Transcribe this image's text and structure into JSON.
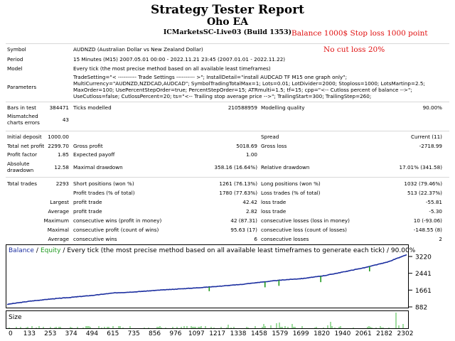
{
  "report": {
    "title": "Strategy Tester Report",
    "ea_name": "Oho EA",
    "server": "ICMarketsSC-Live03 (Build 1353)",
    "note1": "Balance 1000$ Stop loss 1000 point",
    "note2": "No cut loss 20%"
  },
  "settings": {
    "symbol_label": "Symbol",
    "symbol": "AUDNZD (Australian Dollar vs New Zealand Dollar)",
    "period_label": "Period",
    "period": "15 Minutes (M15) 2007.05.01 00:00 - 2022.11.21 23:45 (2007.01.01 - 2022.11.22)",
    "model_label": "Model",
    "model": "Every tick (the most precise method based on all available least timeframes)",
    "parameters_label": "Parameters",
    "parameters": [
      "TradeSetting=\"< ---------- Trade Settings ---------- >\"; InstallDetail=\"install AUDCAD TF M15 one graph only\";",
      "MultiCurrency=\"AUDNZD,NZDCAD,AUDCAD\"; SymbolTradingTotalMax=1; Lots=0.01; LotDivider=2000; Stoploss=1000; LotsMartinp=2.5;",
      "MaxOrder=100; UsePercentStepOrder=true; PercentStepOrder=15; ATRmulti=1.5; tf=15; cpp=\"<-- Cutloss percent of balance -->\";",
      "UseCutloss=false; CutlossPercent=20; ts=\"<-- Trailing stop average price -->\"; TrailingStart=300; TrailingStep=260;"
    ]
  },
  "stats": {
    "bars_label": "Bars in test",
    "bars": "384471",
    "ticks_label": "Ticks modelled",
    "ticks": "210588959",
    "quality_label": "Modelling quality",
    "quality": "90.00%",
    "mismatch_label1": "Mismatched",
    "mismatch_label2": "charts errors",
    "mismatch": "43",
    "deposit_label": "Initial deposit",
    "deposit": "1000.00",
    "spread_label": "Spread",
    "spread": "Current (11)",
    "netprofit_label": "Total net profit",
    "netprofit": "2299.70",
    "grossprofit_label": "Gross profit",
    "grossprofit": "5018.69",
    "grossloss_label": "Gross loss",
    "grossloss": "-2718.99",
    "pf_label": "Profit factor",
    "pf": "1.85",
    "payoff_label": "Expected payoff",
    "payoff": "1.00",
    "absdd_label1": "Absolute",
    "absdd_label2": "drawdown",
    "absdd": "12.58",
    "maxdd_label": "Maximal drawdown",
    "maxdd": "358.16 (16.64%)",
    "reldd_label": "Relative drawdown",
    "reldd": "17.01% (341.58)",
    "trades_label": "Total trades",
    "trades": "2293",
    "short_label": "Short positions (won %)",
    "short": "1261 (76.13%)",
    "long_label": "Long positions (won %)",
    "long": "1032 (79.46%)",
    "proftrades_label": "Profit trades (% of total)",
    "proftrades": "1780 (77.63%)",
    "losstrades_label": "Loss trades (% of total)",
    "losstrades": "513 (22.37%)",
    "largest_label": "Largest",
    "lp_label": "profit trade",
    "lp": "42.42",
    "ll_label": "loss trade",
    "ll": "-55.81",
    "average_label": "Average",
    "ap_label": "profit trade",
    "ap": "2.82",
    "al_label": "loss trade",
    "al": "-5.30",
    "maximum_label": "Maximum",
    "mcw_label": "consecutive wins (profit in money)",
    "mcw": "42 (87.31)",
    "mcl_label": "consecutive losses (loss in money)",
    "mcl": "10 (-93.06)",
    "maximal_label": "Maximal",
    "mcp_label": "consecutive profit (count of wins)",
    "mcp": "95.63 (17)",
    "mcls_label": "consecutive loss (count of losses)",
    "mcls": "-148.55 (8)",
    "average2_label": "Average",
    "acw_label": "consecutive wins",
    "acw": "6",
    "acl_label": "consecutive losses",
    "acl": "2"
  },
  "chart_legend": {
    "balance": "Balance",
    "slash": "/",
    "equity": "Equity",
    "rest": "/ Every tick (the most precise method based on all available least timeframes to generate each tick) / 90.00%"
  },
  "chart_data": {
    "type": "line",
    "x_ticks": [
      "0",
      "133",
      "253",
      "374",
      "494",
      "615",
      "735",
      "856",
      "976",
      "1097",
      "1217",
      "1338",
      "1458",
      "1579",
      "1699",
      "1820",
      "1940",
      "2061",
      "2182",
      "2302"
    ],
    "y_ticks": [
      "3220",
      "2441",
      "1661",
      "882"
    ],
    "ylim": [
      882,
      3320
    ],
    "xlim": [
      0,
      2293
    ],
    "size_label": "Size",
    "series": [
      {
        "name": "Balance",
        "x": [
          0,
          133,
          253,
          374,
          494,
          615,
          735,
          856,
          976,
          1097,
          1217,
          1338,
          1458,
          1579,
          1699,
          1820,
          1940,
          2061,
          2182,
          2293
        ],
        "values": [
          1000,
          1150,
          1250,
          1330,
          1420,
          1530,
          1580,
          1650,
          1710,
          1770,
          1840,
          1920,
          2030,
          2130,
          2200,
          2330,
          2520,
          2720,
          2960,
          3300
        ]
      },
      {
        "name": "Equity",
        "x": [
          1160,
          1480,
          1560,
          1800,
          2080
        ],
        "values": [
          1700,
          1880,
          1950,
          2120,
          2620
        ]
      }
    ],
    "colors": {
      "balance": "#1c2fa0",
      "equity": "#1f9a1f",
      "size": "#3fb83f"
    },
    "grid": false
  }
}
